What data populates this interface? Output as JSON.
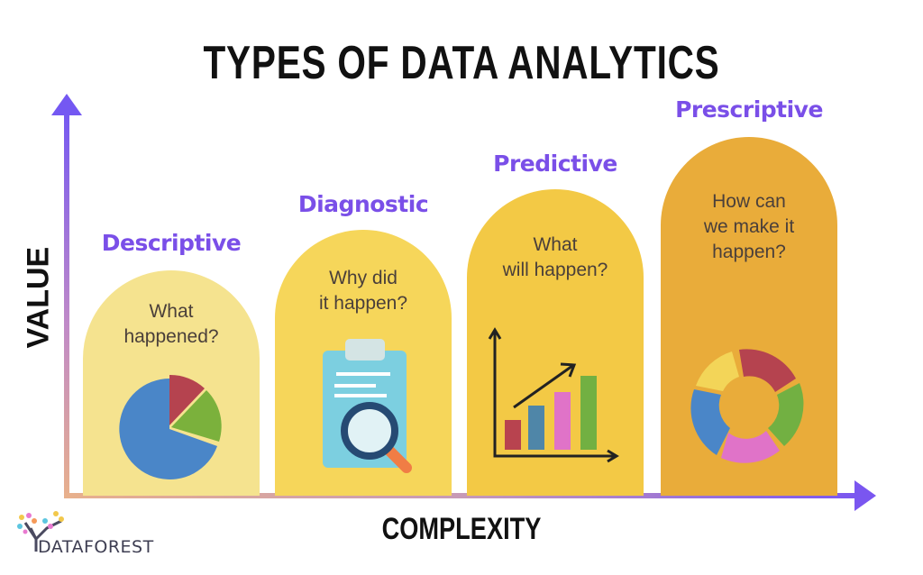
{
  "title": "TYPES OF DATA ANALYTICS",
  "axes": {
    "y_label": "VALUE",
    "x_label": "COMPLEXITY",
    "y_axis_color_top": "#7b5cf0",
    "x_axis_color_end": "#7b5cf0",
    "axis_origin_color": "#e8b08c"
  },
  "columns": [
    {
      "label": "Descriptive",
      "question": [
        "What",
        "happened?"
      ],
      "icon": "pie-chart-icon",
      "color": "#f5e38f"
    },
    {
      "label": "Diagnostic",
      "question": [
        "Why did",
        "it happen?"
      ],
      "icon": "clipboard-magnifier-icon",
      "color": "#f6d65a"
    },
    {
      "label": "Predictive",
      "question": [
        "What",
        "will happen?"
      ],
      "icon": "bar-chart-growth-icon",
      "color": "#f3c945"
    },
    {
      "label": "Prescriptive",
      "question": [
        "How can",
        "we make it",
        "happen?"
      ],
      "icon": "cycle-ring-icon",
      "color": "#e9ac3a"
    }
  ],
  "label_color": "#7a4fe8",
  "logo": {
    "text": "DATAFOREST"
  }
}
